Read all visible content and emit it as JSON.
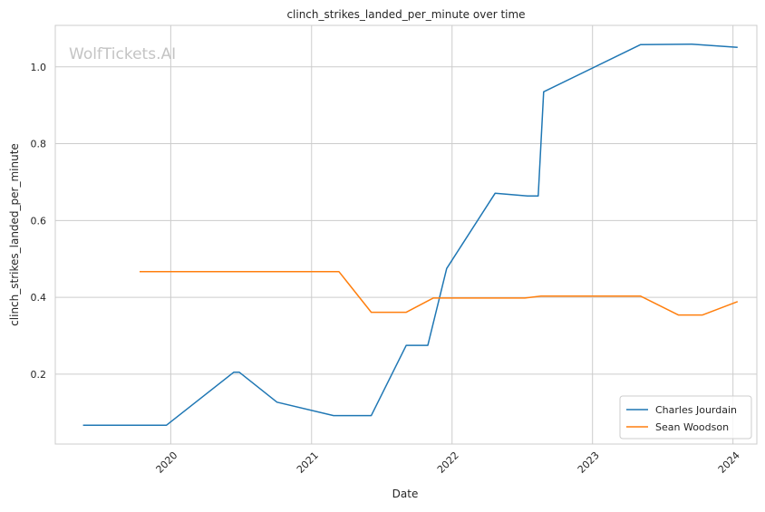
{
  "chart_data": {
    "type": "line",
    "title": "clinch_strikes_landed_per_minute over time",
    "xlabel": "Date",
    "ylabel": "clinch_strikes_landed_per_minute",
    "watermark": "WolfTickets.AI",
    "x_ticks": [
      "2020",
      "2021",
      "2022",
      "2023",
      "2024"
    ],
    "y_ticks": [
      "0.2",
      "0.4",
      "0.6",
      "0.8",
      "1.0"
    ],
    "ylim": [
      0.018,
      1.108
    ],
    "xlim": [
      "2019-03-07",
      "2024-03-03"
    ],
    "grid": true,
    "legend_position": "lower right",
    "series": [
      {
        "name": "Charles Jourdain",
        "color": "#1f77b4",
        "points": [
          [
            "2019-05-18",
            0.067
          ],
          [
            "2019-12-21",
            0.067
          ],
          [
            "2020-06-13",
            0.205
          ],
          [
            "2020-06-27",
            0.205
          ],
          [
            "2020-10-03",
            0.127
          ],
          [
            "2021-02-27",
            0.092
          ],
          [
            "2021-06-05",
            0.092
          ],
          [
            "2021-09-04",
            0.275
          ],
          [
            "2021-10-30",
            0.275
          ],
          [
            "2021-12-18",
            0.475
          ],
          [
            "2022-04-23",
            0.671
          ],
          [
            "2022-07-16",
            0.664
          ],
          [
            "2022-08-13",
            0.664
          ],
          [
            "2022-08-27",
            0.935
          ],
          [
            "2023-05-06",
            1.058
          ],
          [
            "2023-09-16",
            1.059
          ],
          [
            "2024-01-13",
            1.051
          ]
        ]
      },
      {
        "name": "Sean Woodson",
        "color": "#ff7f0e",
        "points": [
          [
            "2019-10-12",
            0.467
          ],
          [
            "2021-03-13",
            0.467
          ],
          [
            "2021-06-05",
            0.361
          ],
          [
            "2021-09-04",
            0.361
          ],
          [
            "2021-11-13",
            0.398
          ],
          [
            "2022-07-09",
            0.398
          ],
          [
            "2022-08-20",
            0.403
          ],
          [
            "2023-05-06",
            0.403
          ],
          [
            "2023-08-12",
            0.354
          ],
          [
            "2023-10-14",
            0.354
          ],
          [
            "2024-01-13",
            0.389
          ]
        ]
      }
    ]
  }
}
